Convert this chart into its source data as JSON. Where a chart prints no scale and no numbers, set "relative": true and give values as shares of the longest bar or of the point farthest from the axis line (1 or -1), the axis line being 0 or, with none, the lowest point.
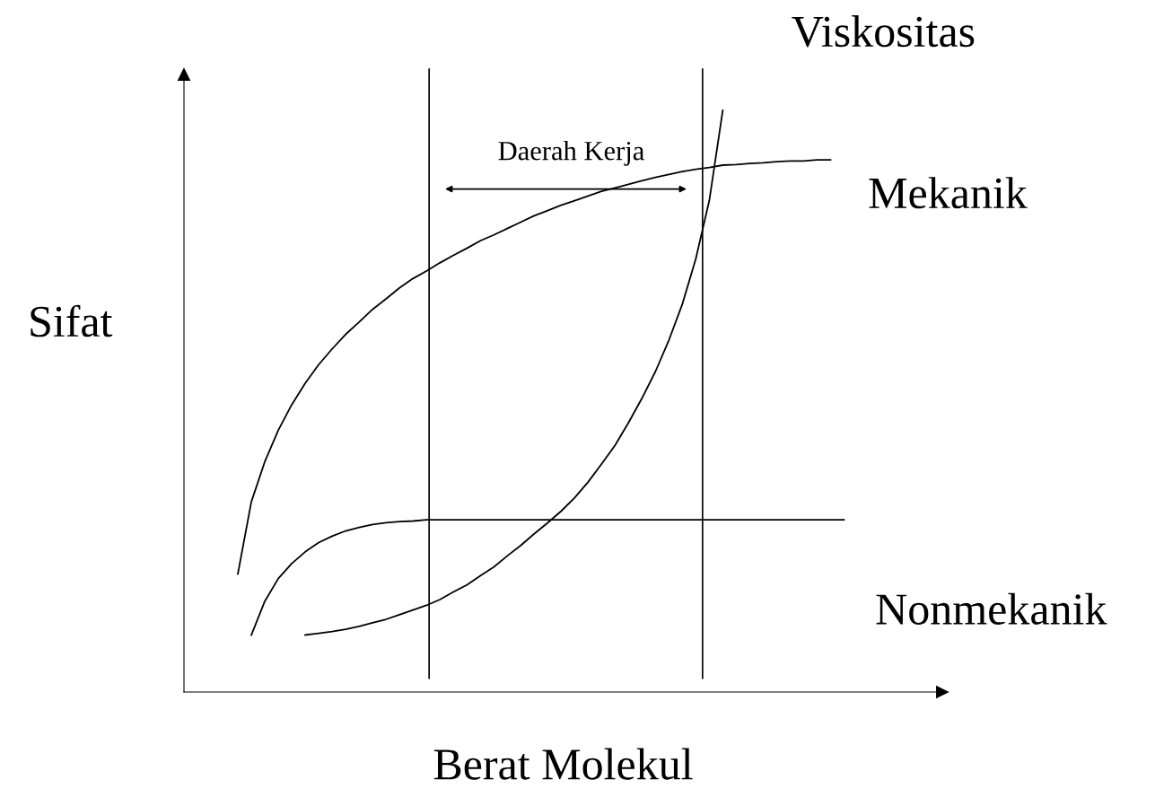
{
  "chart_data": {
    "type": "line",
    "relative": true,
    "xlabel": "Berat Molekul",
    "ylabel": "Sifat",
    "categories": [
      null,
      null,
      null,
      null,
      null,
      null,
      null,
      null,
      null,
      null,
      null,
      null,
      null,
      null,
      null,
      null,
      null,
      null,
      null,
      null,
      null,
      null,
      null,
      null,
      null,
      null,
      null,
      null,
      null,
      null,
      null,
      null,
      null,
      null,
      null,
      null,
      null,
      null,
      null,
      null,
      null,
      null,
      null,
      null,
      null,
      null
    ],
    "series": [
      {
        "name": "Viskositas",
        "color": "#000000",
        "values": [
          null,
          null,
          null,
          null,
          null,
          0.098,
          0.101,
          0.104,
          0.108,
          0.113,
          0.119,
          0.125,
          0.133,
          0.141,
          0.149,
          0.159,
          0.172,
          0.184,
          0.2,
          0.215,
          0.234,
          0.252,
          0.272,
          0.291,
          0.311,
          0.334,
          0.361,
          0.392,
          0.424,
          0.463,
          0.505,
          0.551,
          0.605,
          0.667,
          0.745,
          0.845,
          1,
          null,
          null,
          null,
          null,
          null,
          null,
          null,
          null,
          null
        ]
      },
      {
        "name": "Mekanik",
        "color": "#000000",
        "values": [
          0.203,
          0.327,
          0.396,
          0.45,
          0.494,
          0.531,
          0.563,
          0.59,
          0.615,
          0.636,
          0.658,
          0.676,
          0.695,
          0.711,
          0.724,
          0.738,
          0.751,
          0.763,
          0.776,
          0.786,
          0.797,
          0.808,
          0.819,
          0.828,
          0.837,
          0.845,
          0.853,
          0.861,
          0.867,
          0.873,
          0.879,
          0.885,
          0.89,
          0.895,
          0.899,
          0.902,
          0.906,
          0.907,
          0.909,
          0.91,
          0.912,
          0.913,
          0.913,
          0.915,
          0.915,
          null
        ]
      },
      {
        "name": "Nonmekanik",
        "color": "#000000",
        "values": [
          null,
          0.098,
          0.156,
          0.195,
          0.221,
          0.241,
          0.257,
          0.268,
          0.277,
          0.283,
          0.288,
          0.291,
          0.293,
          0.294,
          0.296,
          0.296,
          0.296,
          0.296,
          0.296,
          0.296,
          0.296,
          0.296,
          0.296,
          0.296,
          0.296,
          0.296,
          0.296,
          0.296,
          0.296,
          0.296,
          0.296,
          0.296,
          0.296,
          0.296,
          0.296,
          0.296,
          0.296,
          0.296,
          0.296,
          0.296,
          0.296,
          0.296,
          0.296,
          0.296,
          0.296,
          0.296
        ]
      }
    ],
    "annotations": [
      "Daerah Kerja"
    ],
    "legend": false,
    "marker": "none",
    "line_style": "solid"
  }
}
